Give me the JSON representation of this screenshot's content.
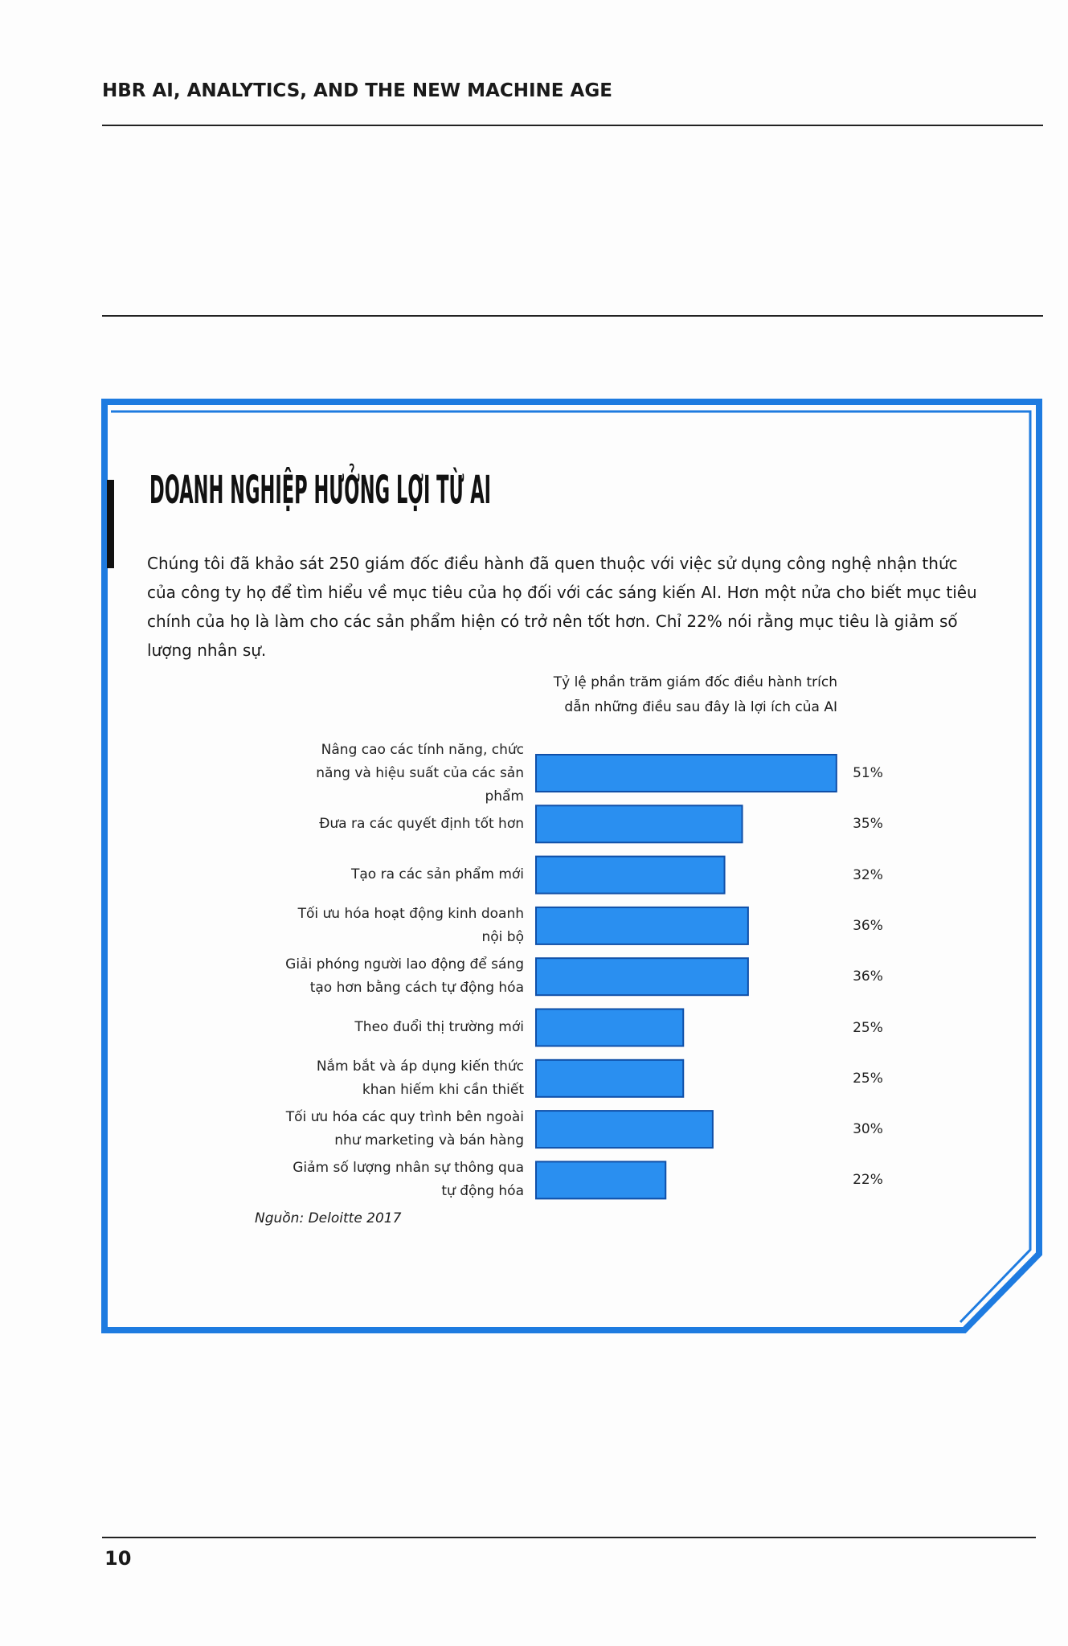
{
  "header": {
    "title": "HBR AI, ANALYTICS, AND THE NEW MACHINE AGE"
  },
  "box": {
    "title": "DOANH NGHIỆP HƯỞNG LỢI TỪ AI",
    "text": "Chúng tôi đã khảo sát 250 giám đốc điều hành đã quen thuộc với việc sử dụng công nghệ nhận thức của công ty họ để tìm hiểu về mục tiêu của họ đối với các sáng kiến AI. Hơn một nửa cho biết mục tiêu chính của họ là làm cho các sản phẩm hiện có trở nên tốt hơn. Chỉ 22% nói rằng mục tiêu là giảm số lượng nhân sự."
  },
  "chart_data": {
    "type": "hbar",
    "subtitle": "Tỷ lệ phần trăm giám đốc điều hành trích dẫn những điều sau đây là lợi ích của AI",
    "categories": [
      "Nâng cao các tính năng, chức năng và hiệu suất của các sản phẩm",
      "Đưa ra các quyết định tốt hơn",
      "Tạo ra các sản phẩm mới",
      "Tối ưu hóa hoạt động kinh doanh nội bộ",
      "Giải phóng người lao động để sáng tạo hơn bằng cách tự động hóa",
      "Theo đuổi thị trường mới",
      "Nắm bắt và áp dụng kiến thức khan hiếm khi cần thiết",
      "Tối ưu hóa các quy trình bên ngoài như marketing và bán hàng",
      "Giảm số lượng nhân sự thông qua tự động hóa"
    ],
    "values": [
      51,
      35,
      32,
      36,
      36,
      25,
      25,
      30,
      22
    ],
    "value_labels": [
      "51%",
      "35%",
      "32%",
      "36%",
      "36%",
      "25%",
      "25%",
      "30%",
      "22%"
    ],
    "color": "#2a8ff0",
    "source": "Nguồn: Deloitte 2017"
  },
  "footer": {
    "page": "10"
  }
}
